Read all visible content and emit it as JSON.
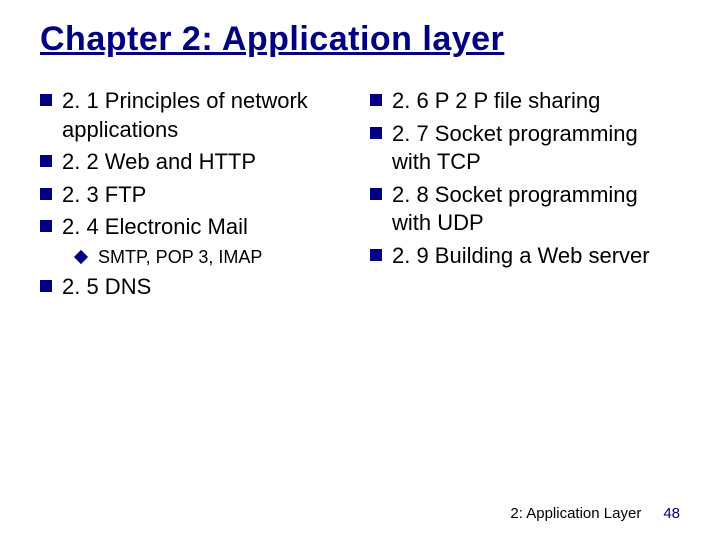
{
  "title": "Chapter 2: Application layer",
  "colors": {
    "title_color": "#000080",
    "bullet_color": "#000080",
    "text_color": "#000000",
    "background": "#ffffff",
    "page_num_color": "#000080"
  },
  "typography": {
    "title_fontsize": 34,
    "item_fontsize": 22,
    "subitem_fontsize": 18,
    "footer_fontsize": 15,
    "font_family": "Comic Sans MS"
  },
  "left": {
    "i0": "2. 1 Principles of network applications",
    "i1": "2. 2 Web and HTTP",
    "i2": "2. 3 FTP",
    "i3": "2. 4 Electronic Mail",
    "i3_sub0": "SMTP, POP 3, IMAP",
    "i4": "2. 5 DNS"
  },
  "right": {
    "i0": "2. 6 P 2 P file sharing",
    "i1": "2. 7 Socket programming with TCP",
    "i2": "2. 8 Socket programming with UDP",
    "i3": "2. 9 Building a Web server"
  },
  "footer": {
    "text": "2: Application Layer",
    "page": "48"
  }
}
